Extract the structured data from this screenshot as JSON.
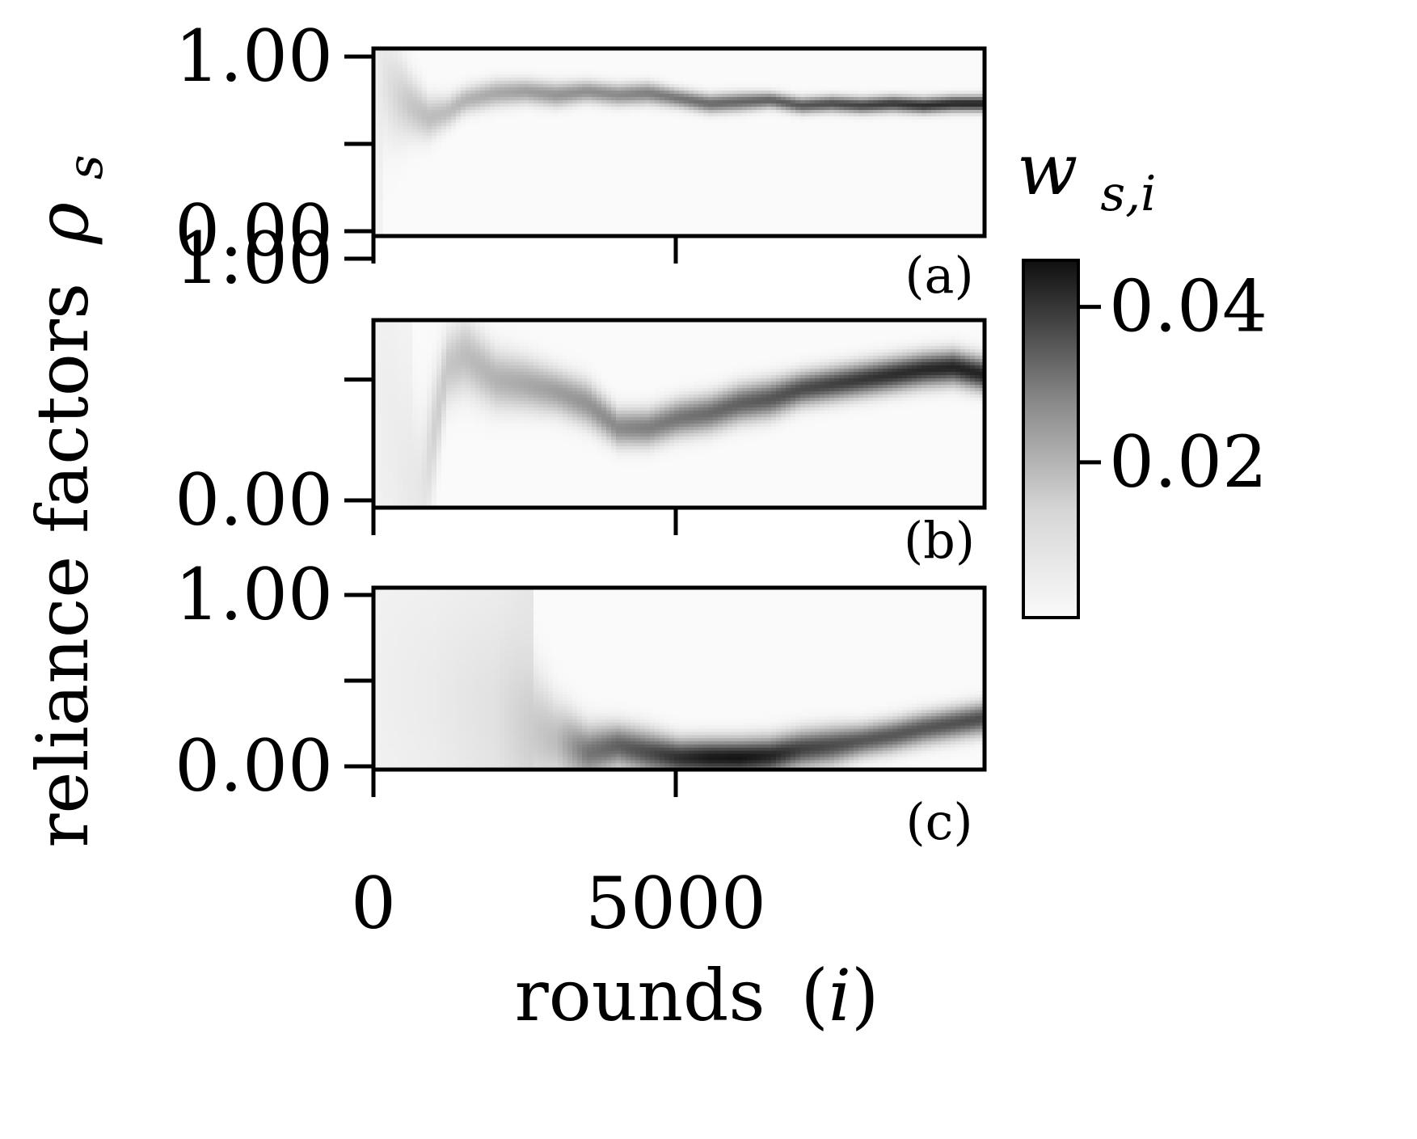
{
  "chart_data": {
    "type": "heatmap",
    "ylabel": "reliance factors",
    "ylabel_symbol": "ρ",
    "ylabel_subscript": "s",
    "xlabel": "rounds",
    "xlabel_var": "i",
    "x_ticks": [
      "0",
      "5000"
    ],
    "xlim": [
      0,
      10000
    ],
    "colorbar": {
      "label": "w",
      "label_subscript": "s,i",
      "ticks": [
        "0.02",
        "0.04"
      ],
      "tick_values": [
        0.02,
        0.04
      ],
      "range": [
        0,
        0.046
      ],
      "colormap": "Greys"
    },
    "panels": [
      {
        "label": "(a)",
        "y_ticks": [
          "1.00",
          "0.00"
        ],
        "ylim": [
          0,
          1
        ],
        "ridge": {
          "x": [
            0,
            300,
            600,
            900,
            1200,
            1500,
            2000,
            2500,
            3000,
            3500,
            4000,
            4500,
            5000,
            5500,
            6000,
            6500,
            7000,
            7500,
            8000,
            8500,
            9000,
            9500,
            10000
          ],
          "rho": [
            0.95,
            0.8,
            0.72,
            0.65,
            0.68,
            0.75,
            0.79,
            0.8,
            0.78,
            0.8,
            0.78,
            0.79,
            0.76,
            0.73,
            0.74,
            0.75,
            0.72,
            0.73,
            0.72,
            0.73,
            0.72,
            0.73,
            0.73
          ],
          "w": [
            0.002,
            0.006,
            0.01,
            0.012,
            0.012,
            0.014,
            0.016,
            0.018,
            0.02,
            0.021,
            0.022,
            0.024,
            0.026,
            0.028,
            0.029,
            0.03,
            0.032,
            0.034,
            0.036,
            0.038,
            0.04,
            0.041,
            0.042
          ],
          "spread": [
            0.3,
            0.2,
            0.12,
            0.08,
            0.06,
            0.05,
            0.05,
            0.045,
            0.045,
            0.04,
            0.04,
            0.04,
            0.035,
            0.035,
            0.035,
            0.03,
            0.03,
            0.03,
            0.03,
            0.03,
            0.03,
            0.03,
            0.03
          ]
        }
      },
      {
        "label": "(b)",
        "y_ticks": [
          "1.00",
          "0.00"
        ],
        "ylim": [
          0,
          1
        ],
        "ridge": {
          "x": [
            0,
            500,
            800,
            1000,
            1200,
            1500,
            2000,
            2500,
            3000,
            3500,
            4000,
            4500,
            5000,
            5500,
            6000,
            6500,
            7000,
            7500,
            8000,
            8500,
            9000,
            9500,
            10000
          ],
          "rho": [
            0.5,
            0.1,
            0.05,
            0.3,
            0.55,
            0.6,
            0.5,
            0.48,
            0.45,
            0.4,
            0.3,
            0.3,
            0.34,
            0.36,
            0.4,
            0.42,
            0.46,
            0.48,
            0.5,
            0.52,
            0.54,
            0.55,
            0.52
          ],
          "w": [
            0.002,
            0.003,
            0.004,
            0.008,
            0.01,
            0.012,
            0.014,
            0.016,
            0.018,
            0.02,
            0.022,
            0.024,
            0.026,
            0.028,
            0.03,
            0.032,
            0.034,
            0.036,
            0.038,
            0.04,
            0.041,
            0.042,
            0.042
          ],
          "spread": [
            0.5,
            0.3,
            0.2,
            0.15,
            0.1,
            0.1,
            0.08,
            0.07,
            0.06,
            0.06,
            0.05,
            0.05,
            0.05,
            0.05,
            0.05,
            0.05,
            0.045,
            0.045,
            0.045,
            0.045,
            0.045,
            0.045,
            0.045
          ]
        }
      },
      {
        "label": "(c)",
        "y_ticks": [
          "1.00",
          "0.00"
        ],
        "ylim": [
          0,
          1
        ],
        "ridge": {
          "x": [
            0,
            1000,
            2000,
            3000,
            3500,
            4000,
            4500,
            5000,
            5500,
            6000,
            6500,
            7000,
            7500,
            8000,
            8500,
            9000,
            9500,
            10000
          ],
          "rho": [
            0.5,
            0.4,
            0.3,
            0.15,
            0.08,
            0.12,
            0.08,
            0.05,
            0.05,
            0.05,
            0.06,
            0.1,
            0.12,
            0.15,
            0.18,
            0.22,
            0.25,
            0.28
          ],
          "w": [
            0.002,
            0.003,
            0.005,
            0.012,
            0.026,
            0.03,
            0.034,
            0.04,
            0.044,
            0.045,
            0.042,
            0.036,
            0.034,
            0.032,
            0.032,
            0.032,
            0.033,
            0.034
          ],
          "spread": [
            0.6,
            0.5,
            0.4,
            0.15,
            0.1,
            0.08,
            0.08,
            0.07,
            0.07,
            0.07,
            0.07,
            0.07,
            0.07,
            0.06,
            0.06,
            0.06,
            0.06,
            0.06
          ]
        }
      }
    ]
  }
}
